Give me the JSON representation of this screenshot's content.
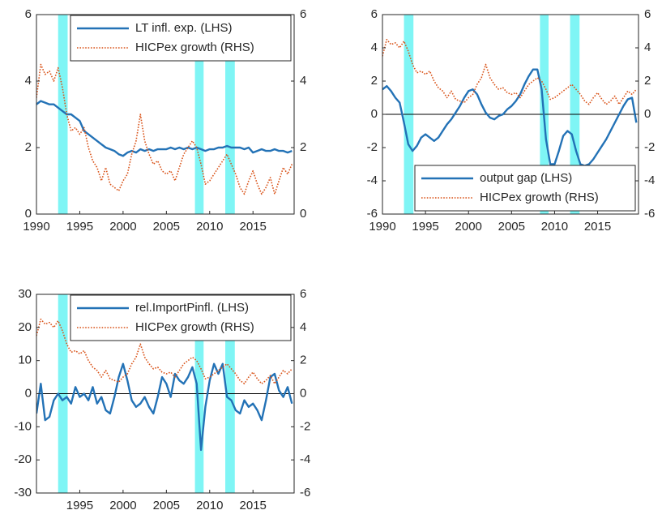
{
  "chart_data": [
    {
      "type": "line",
      "xlim": [
        1990,
        2019.75
      ],
      "xticks": [
        1990,
        1995,
        2000,
        2005,
        2010,
        2015
      ],
      "ylim": [
        0,
        6
      ],
      "yticks": [
        0,
        2,
        4,
        6
      ],
      "y2lim": [
        0,
        6
      ],
      "y2ticks": [
        0,
        2,
        4,
        6
      ],
      "legend": "upper right",
      "zero_line": false,
      "shaded_regions": [
        [
          1992.5,
          1993.6
        ],
        [
          2008.3,
          2009.3
        ],
        [
          2011.8,
          2012.9
        ]
      ],
      "x": [
        1990,
        1990.5,
        1991,
        1991.5,
        1992,
        1992.5,
        1993,
        1993.5,
        1994,
        1994.5,
        1995,
        1995.5,
        1996,
        1996.5,
        1997,
        1997.5,
        1998,
        1998.5,
        1999,
        1999.5,
        2000,
        2000.5,
        2001,
        2001.5,
        2002,
        2002.5,
        2003,
        2003.5,
        2004,
        2004.5,
        2005,
        2005.5,
        2006,
        2006.5,
        2007,
        2007.5,
        2008,
        2008.5,
        2009,
        2009.5,
        2010,
        2010.5,
        2011,
        2011.5,
        2012,
        2012.5,
        2013,
        2013.5,
        2014,
        2014.5,
        2015,
        2015.5,
        2016,
        2016.5,
        2017,
        2017.5,
        2018,
        2018.5,
        2019,
        2019.5
      ],
      "series": [
        {
          "name": "LT infl. exp. (LHS)",
          "color": "#2372b6",
          "values": [
            3.3,
            3.4,
            3.35,
            3.3,
            3.3,
            3.2,
            3.1,
            3.0,
            3.0,
            2.9,
            2.8,
            2.5,
            2.4,
            2.3,
            2.2,
            2.1,
            2.0,
            1.95,
            1.9,
            1.8,
            1.75,
            1.85,
            1.9,
            1.85,
            1.95,
            1.9,
            1.95,
            1.9,
            1.95,
            1.95,
            1.95,
            2.0,
            1.95,
            2.0,
            1.95,
            2.0,
            1.95,
            2.0,
            1.95,
            1.9,
            1.95,
            1.95,
            2.0,
            2.0,
            2.05,
            2.0,
            2.0,
            2.0,
            1.95,
            2.0,
            1.85,
            1.9,
            1.95,
            1.9,
            1.9,
            1.95,
            1.9,
            1.9,
            1.85,
            1.9
          ]
        },
        {
          "name": "HICPex growth (RHS)",
          "color": "#d95319",
          "axis": "y2",
          "values": [
            3.5,
            4.5,
            4.2,
            4.3,
            4.0,
            4.4,
            3.8,
            3.0,
            2.5,
            2.6,
            2.4,
            2.6,
            2.0,
            1.6,
            1.4,
            1.0,
            1.4,
            0.9,
            0.8,
            0.7,
            1.0,
            1.2,
            1.8,
            2.2,
            3.0,
            2.2,
            1.8,
            1.5,
            1.6,
            1.3,
            1.2,
            1.3,
            1.0,
            1.4,
            1.8,
            2.0,
            2.2,
            2.0,
            1.5,
            0.9,
            1.0,
            1.2,
            1.4,
            1.6,
            1.8,
            1.5,
            1.2,
            0.8,
            0.6,
            1.0,
            1.3,
            0.9,
            0.6,
            0.8,
            1.1,
            0.6,
            1.0,
            1.4,
            1.2,
            1.5
          ]
        }
      ]
    },
    {
      "type": "line",
      "xlim": [
        1990,
        2019.75
      ],
      "xticks": [
        1990,
        1995,
        2000,
        2005,
        2010,
        2015
      ],
      "ylim": [
        -6,
        6
      ],
      "yticks": [
        -6,
        -4,
        -2,
        0,
        2,
        4,
        6
      ],
      "y2lim": [
        -6,
        6
      ],
      "y2ticks": [
        -6,
        -4,
        -2,
        0,
        2,
        4,
        6
      ],
      "legend": "lower right",
      "zero_line": true,
      "shaded_regions": [
        [
          1992.5,
          1993.6
        ],
        [
          2008.3,
          2009.3
        ],
        [
          2011.8,
          2012.9
        ]
      ],
      "x": [
        1990,
        1990.5,
        1991,
        1991.5,
        1992,
        1992.5,
        1993,
        1993.5,
        1994,
        1994.5,
        1995,
        1995.5,
        1996,
        1996.5,
        1997,
        1997.5,
        1998,
        1998.5,
        1999,
        1999.5,
        2000,
        2000.5,
        2001,
        2001.5,
        2002,
        2002.5,
        2003,
        2003.5,
        2004,
        2004.5,
        2005,
        2005.5,
        2006,
        2006.5,
        2007,
        2007.5,
        2008,
        2008.5,
        2009,
        2009.5,
        2010,
        2010.5,
        2011,
        2011.5,
        2012,
        2012.5,
        2013,
        2013.5,
        2014,
        2014.5,
        2015,
        2015.5,
        2016,
        2016.5,
        2017,
        2017.5,
        2018,
        2018.5,
        2019,
        2019.5
      ],
      "series": [
        {
          "name": "output gap (LHS)",
          "color": "#2372b6",
          "values": [
            1.5,
            1.7,
            1.4,
            1.0,
            0.7,
            -0.5,
            -1.8,
            -2.2,
            -1.9,
            -1.4,
            -1.2,
            -1.4,
            -1.6,
            -1.4,
            -1.0,
            -0.6,
            -0.3,
            0.1,
            0.5,
            1.0,
            1.4,
            1.5,
            1.2,
            0.6,
            0.1,
            -0.2,
            -0.3,
            -0.1,
            0.0,
            0.3,
            0.5,
            0.8,
            1.2,
            1.8,
            2.3,
            2.7,
            2.7,
            1.5,
            -1.5,
            -3.0,
            -3.0,
            -2.2,
            -1.3,
            -1.0,
            -1.2,
            -2.2,
            -3.0,
            -3.1,
            -3.0,
            -2.7,
            -2.3,
            -1.9,
            -1.5,
            -1.0,
            -0.5,
            0.0,
            0.5,
            0.9,
            1.0,
            -0.5
          ]
        },
        {
          "name": "HICPex growth (RHS)",
          "color": "#d95319",
          "axis": "y2",
          "values": [
            3.5,
            4.5,
            4.2,
            4.3,
            4.0,
            4.4,
            3.8,
            3.0,
            2.5,
            2.6,
            2.4,
            2.6,
            2.0,
            1.6,
            1.4,
            1.0,
            1.4,
            0.9,
            0.8,
            0.7,
            1.0,
            1.2,
            1.8,
            2.2,
            3.0,
            2.2,
            1.8,
            1.5,
            1.6,
            1.3,
            1.2,
            1.3,
            1.0,
            1.4,
            1.8,
            2.0,
            2.2,
            2.0,
            1.5,
            0.9,
            1.0,
            1.2,
            1.4,
            1.6,
            1.8,
            1.5,
            1.2,
            0.8,
            0.6,
            1.0,
            1.3,
            0.9,
            0.6,
            0.8,
            1.1,
            0.6,
            1.0,
            1.4,
            1.2,
            1.5
          ]
        }
      ]
    },
    {
      "type": "line",
      "xlim": [
        1990,
        2019.75
      ],
      "xticks": [
        1995,
        2000,
        2005,
        2010,
        2015
      ],
      "ylim": [
        -30,
        30
      ],
      "yticks": [
        -30,
        -20,
        -10,
        0,
        10,
        20,
        30
      ],
      "y2lim": [
        -6,
        6
      ],
      "y2ticks": [
        -6,
        -4,
        -2,
        0,
        2,
        4,
        6
      ],
      "legend": "upper right",
      "zero_line": true,
      "shaded_regions": [
        [
          1992.5,
          1993.6
        ],
        [
          2008.3,
          2009.3
        ],
        [
          2011.8,
          2012.9
        ]
      ],
      "x": [
        1990,
        1990.5,
        1991,
        1991.5,
        1992,
        1992.5,
        1993,
        1993.5,
        1994,
        1994.5,
        1995,
        1995.5,
        1996,
        1996.5,
        1997,
        1997.5,
        1998,
        1998.5,
        1999,
        1999.5,
        2000,
        2000.5,
        2001,
        2001.5,
        2002,
        2002.5,
        2003,
        2003.5,
        2004,
        2004.5,
        2005,
        2005.5,
        2006,
        2006.5,
        2007,
        2007.5,
        2008,
        2008.5,
        2009,
        2009.5,
        2010,
        2010.5,
        2011,
        2011.5,
        2012,
        2012.5,
        2013,
        2013.5,
        2014,
        2014.5,
        2015,
        2015.5,
        2016,
        2016.5,
        2017,
        2017.5,
        2018,
        2018.5,
        2019,
        2019.5
      ],
      "series": [
        {
          "name": "rel.ImportPinfl. (LHS)",
          "color": "#2372b6",
          "values": [
            -6,
            3,
            -8,
            -7,
            -2,
            0,
            -2,
            -1,
            -3,
            2,
            -1,
            0,
            -2,
            2,
            -3,
            -1,
            -5,
            -6,
            -1,
            5,
            9,
            4,
            -2,
            -4,
            -3,
            -1,
            -4,
            -6,
            -1,
            5,
            3,
            -1,
            6,
            4,
            3,
            5,
            8,
            3,
            -17,
            -4,
            4,
            9,
            6,
            9,
            -1,
            -2,
            -5,
            -6,
            -2,
            -4,
            -3,
            -5,
            -8,
            -2,
            5,
            6,
            1,
            -1,
            2,
            -3
          ]
        },
        {
          "name": "HICPex growth (RHS)",
          "color": "#d95319",
          "axis": "y2",
          "values": [
            3.5,
            4.5,
            4.2,
            4.3,
            4.0,
            4.4,
            3.8,
            3.0,
            2.5,
            2.6,
            2.4,
            2.6,
            2.0,
            1.6,
            1.4,
            1.0,
            1.4,
            0.9,
            0.8,
            0.7,
            1.0,
            1.2,
            1.8,
            2.2,
            3.0,
            2.2,
            1.8,
            1.5,
            1.6,
            1.3,
            1.2,
            1.3,
            1.0,
            1.4,
            1.8,
            2.0,
            2.2,
            2.0,
            1.5,
            0.9,
            1.0,
            1.2,
            1.4,
            1.6,
            1.8,
            1.5,
            1.2,
            0.8,
            0.6,
            1.0,
            1.3,
            0.9,
            0.6,
            0.8,
            1.1,
            0.6,
            1.0,
            1.4,
            1.2,
            1.5
          ]
        }
      ]
    }
  ]
}
